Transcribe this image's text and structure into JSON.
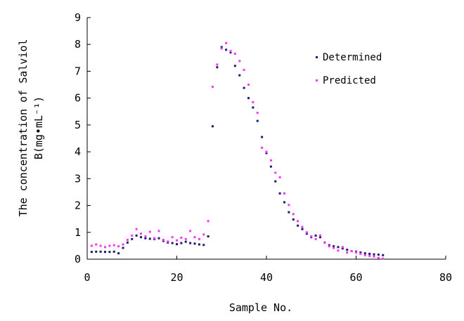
{
  "chart_data": {
    "type": "scatter",
    "title": "",
    "xlabel": "Sample No.",
    "ylabel_line1": "The concentration of Salviol",
    "ylabel_line2": "B(mg•mL⁻¹)",
    "xlim": [
      0,
      80
    ],
    "ylim": [
      0,
      9
    ],
    "xticks": [
      "0",
      "20",
      "40",
      "60",
      "80"
    ],
    "yticks": [
      "0",
      "1",
      "2",
      "3",
      "4",
      "5",
      "6",
      "7",
      "8",
      "9"
    ],
    "grid": false,
    "legend_position": "top-right",
    "series": [
      {
        "name": "Determined",
        "color": "#1a1a6e",
        "x": [
          1,
          2,
          3,
          4,
          5,
          6,
          7,
          8,
          9,
          10,
          11,
          12,
          13,
          14,
          15,
          16,
          17,
          18,
          19,
          20,
          21,
          22,
          23,
          24,
          25,
          26,
          27,
          28,
          29,
          30,
          31,
          32,
          33,
          34,
          35,
          36,
          37,
          38,
          39,
          40,
          41,
          42,
          43,
          44,
          45,
          46,
          47,
          48,
          49,
          50,
          51,
          52,
          53,
          54,
          55,
          56,
          57,
          58,
          59,
          60,
          61,
          62,
          63,
          64,
          65,
          66
        ],
        "y": [
          0.27,
          0.28,
          0.28,
          0.27,
          0.27,
          0.28,
          0.22,
          0.42,
          0.62,
          0.75,
          0.88,
          0.82,
          0.78,
          0.76,
          0.75,
          0.78,
          0.68,
          0.62,
          0.6,
          0.56,
          0.6,
          0.65,
          0.6,
          0.58,
          0.55,
          0.53,
          0.85,
          4.95,
          7.15,
          7.9,
          7.8,
          7.7,
          7.2,
          6.85,
          6.38,
          6.0,
          5.65,
          5.15,
          4.55,
          3.95,
          3.45,
          2.9,
          2.45,
          2.12,
          1.75,
          1.48,
          1.25,
          1.12,
          0.95,
          0.82,
          0.88,
          0.82,
          0.62,
          0.52,
          0.48,
          0.45,
          0.4,
          0.35,
          0.3,
          0.28,
          0.25,
          0.22,
          0.2,
          0.18,
          0.17,
          0.15
        ]
      },
      {
        "name": "Predicted",
        "color": "#ff33ff",
        "x": [
          1,
          2,
          3,
          4,
          5,
          6,
          7,
          8,
          9,
          10,
          11,
          12,
          13,
          14,
          15,
          16,
          17,
          18,
          19,
          20,
          21,
          22,
          23,
          24,
          25,
          26,
          27,
          28,
          29,
          30,
          31,
          32,
          33,
          34,
          35,
          36,
          37,
          38,
          39,
          40,
          41,
          42,
          43,
          44,
          45,
          46,
          47,
          48,
          49,
          50,
          51,
          52,
          53,
          54,
          55,
          56,
          57,
          58,
          59,
          60,
          61,
          62,
          63,
          64,
          65,
          66
        ],
        "y": [
          0.5,
          0.55,
          0.5,
          0.45,
          0.5,
          0.52,
          0.48,
          0.55,
          0.72,
          0.88,
          1.12,
          0.95,
          0.85,
          1.02,
          0.78,
          1.05,
          0.72,
          0.66,
          0.82,
          0.7,
          0.8,
          0.75,
          1.05,
          0.82,
          0.75,
          0.92,
          1.42,
          6.42,
          7.25,
          7.85,
          8.05,
          7.75,
          7.65,
          7.38,
          7.05,
          6.5,
          5.85,
          5.45,
          4.15,
          4.0,
          3.68,
          3.22,
          3.05,
          2.45,
          2.02,
          1.68,
          1.42,
          1.2,
          1.0,
          0.85,
          0.75,
          0.88,
          0.62,
          0.48,
          0.42,
          0.32,
          0.45,
          0.25,
          0.3,
          0.25,
          0.2,
          0.15,
          0.12,
          0.1,
          0.05,
          0.02
        ]
      }
    ]
  }
}
